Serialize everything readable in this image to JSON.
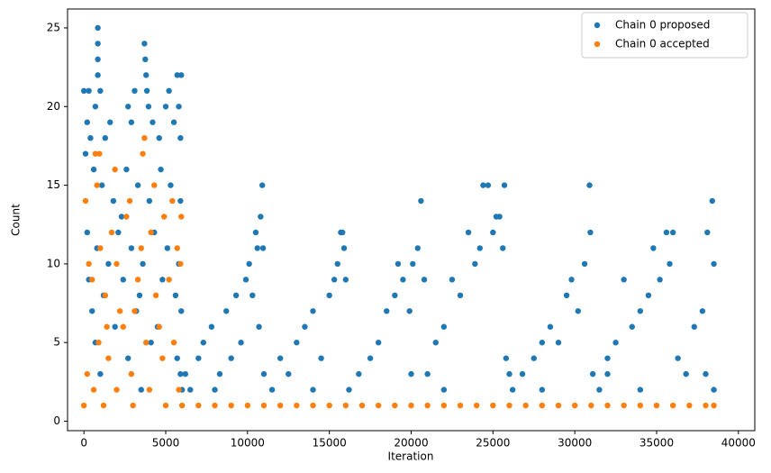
{
  "chart_data": {
    "type": "scatter",
    "xlabel": "Iteration",
    "ylabel": "Count",
    "xlim": [
      -1000,
      41000
    ],
    "ylim": [
      -0.6,
      26.2
    ],
    "xticks": [
      0,
      5000,
      10000,
      15000,
      20000,
      25000,
      30000,
      35000,
      40000
    ],
    "yticks": [
      0,
      5,
      10,
      15,
      20,
      25
    ],
    "legend": "upper right",
    "series": [
      {
        "name": "Chain 0 proposed",
        "color": "#1f77b4",
        "x": [
          0,
          300,
          850,
          850,
          850,
          850,
          1000,
          700,
          200,
          1600,
          400,
          1300,
          2700,
          2900,
          3100,
          3700,
          3750,
          3800,
          3850,
          3950,
          4200,
          4600,
          5000,
          5200,
          5700,
          5950,
          5800,
          5500,
          5900,
          100,
          600,
          1100,
          1800,
          2300,
          2600,
          3300,
          4000,
          4700,
          5300,
          5900,
          200,
          800,
          1500,
          2100,
          2900,
          3600,
          4300,
          5100,
          5800,
          300,
          1200,
          2400,
          3400,
          4800,
          5600,
          500,
          1900,
          3200,
          4500,
          5950,
          700,
          2700,
          4100,
          5700,
          1000,
          3500,
          5900,
          6000,
          6200,
          6500,
          7000,
          7300,
          7800,
          8300,
          8700,
          9000,
          9300,
          9600,
          9900,
          10100,
          10300,
          10500,
          10600,
          10800,
          10900,
          10950,
          10700,
          11000,
          11500,
          12000,
          12500,
          13000,
          13500,
          14000,
          14500,
          15000,
          15300,
          15500,
          15700,
          15800,
          15900,
          16000,
          16200,
          16800,
          17500,
          18000,
          18500,
          19000,
          19200,
          19500,
          19900,
          20100,
          20400,
          20600,
          20800,
          21000,
          21500,
          22000,
          22500,
          23000,
          23500,
          23900,
          24200,
          24400,
          24700,
          25000,
          25200,
          25400,
          25600,
          25700,
          25800,
          26200,
          26800,
          27500,
          28000,
          28500,
          29000,
          29500,
          29800,
          30200,
          30600,
          30900,
          30950,
          31100,
          31500,
          32000,
          32500,
          33000,
          33500,
          34000,
          34500,
          34800,
          35200,
          35600,
          35800,
          36000,
          36300,
          36800,
          37300,
          37800,
          38100,
          38400,
          38500,
          38500,
          8000,
          14000,
          22000,
          28000,
          34000,
          38000,
          20000,
          26000,
          32000
        ],
        "values": [
          21,
          21,
          25,
          24,
          23,
          22,
          21,
          20,
          19,
          19,
          18,
          18,
          20,
          19,
          21,
          24,
          23,
          22,
          21,
          20,
          19,
          18,
          20,
          21,
          22,
          22,
          20,
          19,
          18,
          17,
          16,
          15,
          14,
          13,
          16,
          15,
          14,
          16,
          15,
          14,
          12,
          11,
          10,
          12,
          11,
          10,
          12,
          11,
          10,
          9,
          8,
          9,
          8,
          9,
          8,
          7,
          6,
          7,
          6,
          7,
          5,
          4,
          5,
          4,
          3,
          2,
          3,
          2,
          3,
          2,
          4,
          5,
          6,
          3,
          7,
          4,
          8,
          5,
          9,
          10,
          8,
          12,
          11,
          13,
          15,
          11,
          6,
          3,
          2,
          4,
          3,
          5,
          6,
          7,
          4,
          8,
          9,
          10,
          12,
          12,
          11,
          9,
          2,
          3,
          4,
          5,
          7,
          8,
          10,
          9,
          7,
          10,
          11,
          14,
          9,
          3,
          5,
          6,
          9,
          8,
          12,
          10,
          11,
          15,
          15,
          12,
          13,
          13,
          11,
          15,
          4,
          2,
          3,
          4,
          5,
          6,
          5,
          8,
          9,
          7,
          10,
          15,
          12,
          3,
          2,
          4,
          5,
          9,
          6,
          7,
          8,
          11,
          9,
          12,
          10,
          12,
          4,
          3,
          6,
          7,
          12,
          14,
          10,
          2,
          2,
          2,
          2,
          2,
          2,
          3,
          3,
          3,
          3
        ]
      },
      {
        "name": "Chain 0 accepted",
        "color": "#ff7f0e",
        "x": [
          0,
          600,
          1200,
          2000,
          3000,
          4000,
          5000,
          5800,
          200,
          900,
          1500,
          2400,
          3100,
          3800,
          4400,
          5200,
          5900,
          300,
          1000,
          1700,
          2600,
          3500,
          4100,
          4900,
          5700,
          100,
          800,
          1900,
          3600,
          3700,
          4300,
          5400,
          5950,
          500,
          1300,
          2200,
          3300,
          4600,
          5500,
          700,
          950,
          2800,
          1400,
          2000,
          2900,
          4800,
          6000,
          7000,
          8000,
          9000,
          10000,
          11000,
          12000,
          13000,
          14000,
          15000,
          16000,
          17000,
          18000,
          19000,
          20000,
          21000,
          22000,
          23000,
          24000,
          25000,
          26000,
          27000,
          28000,
          29000,
          30000,
          31000,
          32000,
          33000,
          34000,
          35000,
          36000,
          37000,
          38000,
          38500
        ],
        "values": [
          1,
          2,
          1,
          2,
          1,
          2,
          1,
          2,
          3,
          5,
          4,
          6,
          7,
          5,
          8,
          9,
          10,
          10,
          11,
          12,
          13,
          11,
          12,
          13,
          11,
          14,
          15,
          16,
          17,
          18,
          15,
          14,
          13,
          9,
          8,
          7,
          9,
          6,
          5,
          17,
          17,
          14,
          6,
          10,
          3,
          4,
          1,
          1,
          1,
          1,
          1,
          1,
          1,
          1,
          1,
          1,
          1,
          1,
          1,
          1,
          1,
          1,
          1,
          1,
          1,
          1,
          1,
          1,
          1,
          1,
          1,
          1,
          1,
          1,
          1,
          1,
          1,
          1,
          1,
          1
        ]
      }
    ]
  }
}
